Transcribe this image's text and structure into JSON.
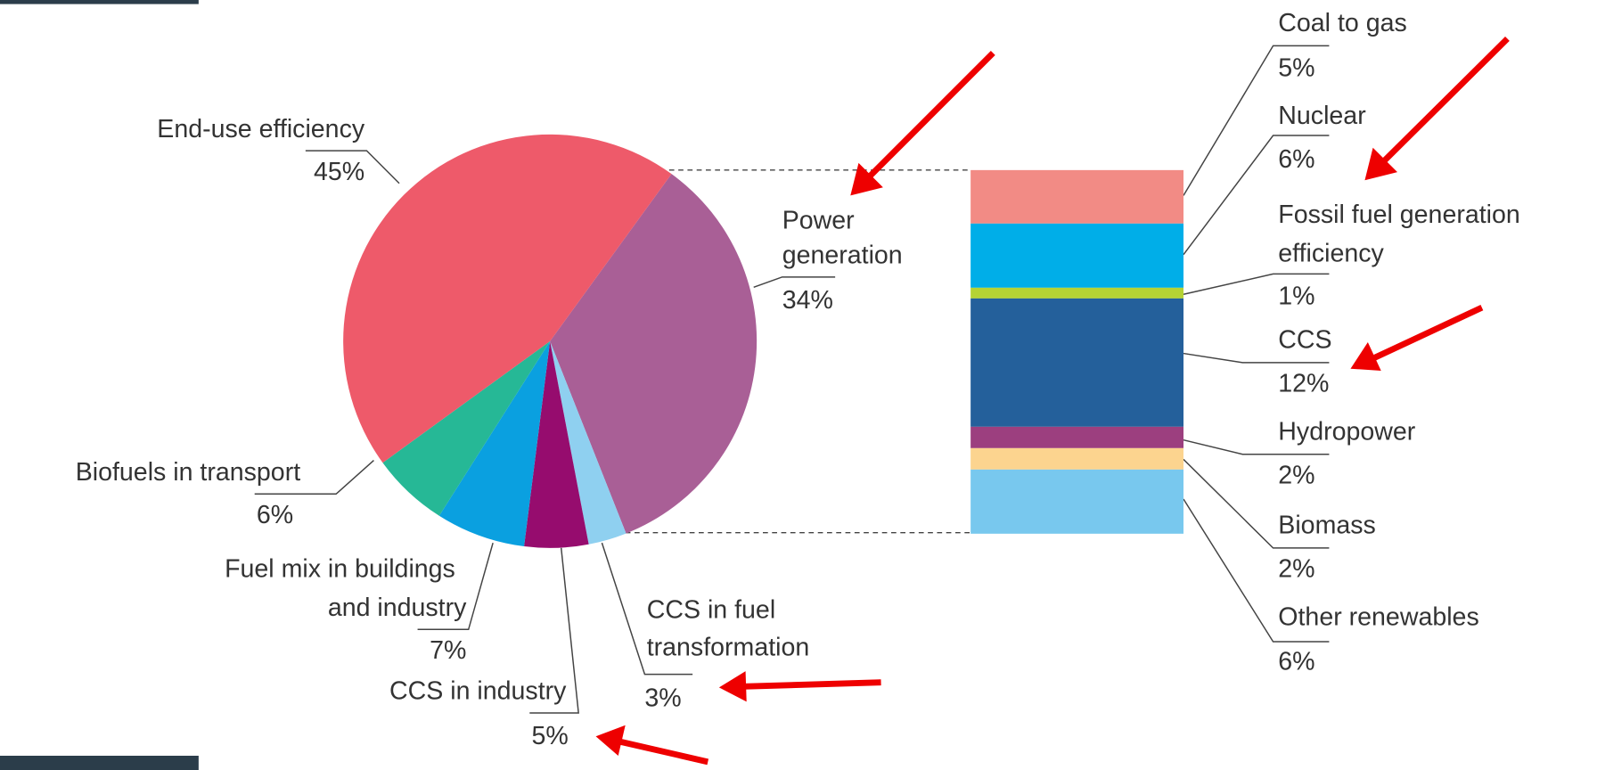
{
  "chart_data": {
    "type": "pie",
    "categories": [
      [
        "Power",
        "generation"
      ],
      [
        "CCS in fuel",
        "transformation"
      ],
      [
        "CCS in industry"
      ],
      [
        "Fuel mix in buildings",
        "and industry"
      ],
      [
        "Biofuels in transport"
      ],
      [
        "End-use efficiency"
      ]
    ],
    "values": [
      34,
      3,
      5,
      7,
      6,
      45
    ],
    "value_labels": [
      "34%",
      "3%",
      "5%",
      "7%",
      "6%",
      "45%"
    ],
    "colors": [
      "#a95f96",
      "#8fd0f0",
      "#960c6e",
      "#0aa0e0",
      "#26b896",
      "#ee5a6a"
    ],
    "breakdown": {
      "type": "bar",
      "categories": [
        [
          "Coal to gas"
        ],
        [
          "Nuclear"
        ],
        [
          "Fossil fuel generation",
          "efficiency"
        ],
        [
          "CCS"
        ],
        [
          "Hydropower"
        ],
        [
          "Biomass"
        ],
        [
          "Other renewables"
        ]
      ],
      "values": [
        5,
        6,
        1,
        12,
        2,
        2,
        6
      ],
      "value_labels": [
        "5%",
        "6%",
        "1%",
        "12%",
        "2%",
        "2%",
        "6%"
      ],
      "colors": [
        "#f28b85",
        "#00aee8",
        "#b5d334",
        "#24609b",
        "#9c3f7f",
        "#fcd48f",
        "#78c8ee"
      ]
    }
  }
}
